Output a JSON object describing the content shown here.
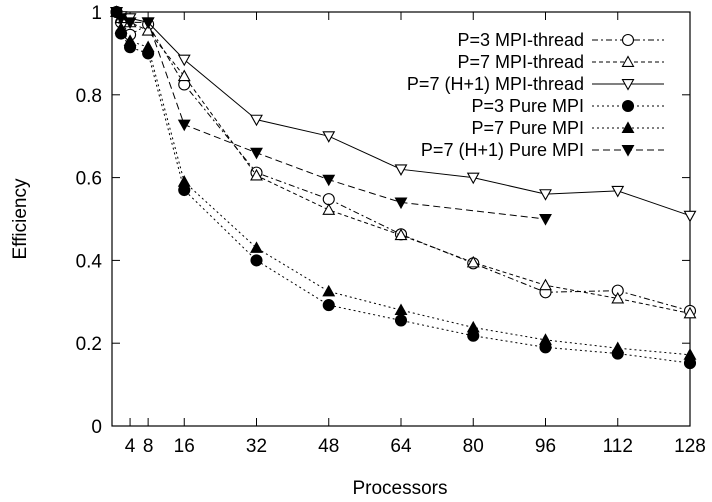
{
  "chart_data": {
    "type": "line",
    "xlabel": "Processors",
    "ylabel": "Efficiency",
    "xlim": [
      0,
      128
    ],
    "ylim": [
      0,
      1
    ],
    "xticks": [
      4,
      8,
      16,
      32,
      48,
      64,
      80,
      96,
      112,
      128
    ],
    "yticks": [
      0,
      0.2,
      0.4,
      0.6,
      0.8,
      1
    ],
    "grid": false,
    "legend_position": "top-right",
    "series": [
      {
        "name": "P=3 MPI-thread",
        "marker": "open-circle",
        "line": "dash-dot",
        "x": [
          1,
          2,
          4,
          8,
          16,
          32,
          48,
          64,
          80,
          96,
          112,
          128
        ],
        "y": [
          1.0,
          0.975,
          0.945,
          0.97,
          0.825,
          0.612,
          0.548,
          0.463,
          0.393,
          0.323,
          0.327,
          0.278
        ]
      },
      {
        "name": "P=7 MPI-thread",
        "marker": "open-triangle-up",
        "line": "short-dash",
        "x": [
          1,
          2,
          4,
          8,
          16,
          32,
          48,
          64,
          80,
          96,
          112,
          128
        ],
        "y": [
          1.0,
          0.985,
          0.975,
          0.955,
          0.845,
          0.605,
          0.522,
          0.461,
          0.395,
          0.34,
          0.308,
          0.272
        ]
      },
      {
        "name": "P=7 (H+1) MPI-thread",
        "marker": "open-triangle-down",
        "line": "solid",
        "x": [
          1,
          2,
          4,
          8,
          16,
          32,
          48,
          64,
          80,
          96,
          112,
          128
        ],
        "y": [
          1.0,
          0.99,
          0.985,
          0.975,
          0.885,
          0.74,
          0.7,
          0.62,
          0.6,
          0.56,
          0.568,
          0.508
        ]
      },
      {
        "name": "P=3 Pure MPI",
        "marker": "filled-circle",
        "line": "dotted",
        "x": [
          1,
          2,
          4,
          8,
          16,
          32,
          48,
          64,
          80,
          96,
          112,
          128
        ],
        "y": [
          1.0,
          0.948,
          0.915,
          0.9,
          0.57,
          0.4,
          0.292,
          0.255,
          0.218,
          0.19,
          0.175,
          0.152
        ]
      },
      {
        "name": "P=7 Pure MPI",
        "marker": "filled-triangle-up",
        "line": "dotted",
        "x": [
          1,
          2,
          4,
          8,
          16,
          32,
          48,
          64,
          80,
          96,
          112,
          128
        ],
        "y": [
          1.0,
          0.96,
          0.93,
          0.915,
          0.59,
          0.43,
          0.325,
          0.28,
          0.238,
          0.208,
          0.188,
          0.172
        ]
      },
      {
        "name": "P=7 (H+1) Pure MPI",
        "marker": "filled-triangle-down",
        "line": "dashed",
        "x": [
          1,
          2,
          4,
          8,
          16,
          32,
          48,
          64,
          80,
          96
        ],
        "y": [
          1.0,
          0.985,
          0.975,
          0.975,
          0.728,
          0.66,
          0.595,
          0.54,
          null,
          0.5
        ]
      }
    ]
  }
}
